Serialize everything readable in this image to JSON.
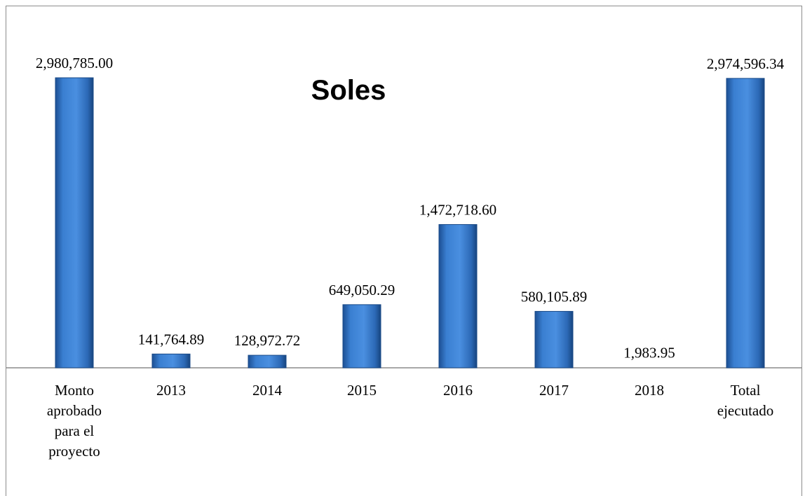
{
  "chart_data": {
    "type": "bar",
    "title": "Soles",
    "categories": [
      [
        "Monto",
        "aprobado",
        "para el",
        "proyecto"
      ],
      [
        "2013"
      ],
      [
        "2014"
      ],
      [
        "2015"
      ],
      [
        "2016"
      ],
      [
        "2017"
      ],
      [
        "2018"
      ],
      [
        "Total",
        "ejecutado"
      ]
    ],
    "values": [
      2980785.0,
      141764.89,
      128972.72,
      649050.29,
      1472718.6,
      580105.89,
      1983.95,
      2974596.34
    ],
    "value_labels": [
      "2,980,785.00",
      "141,764.89",
      "128,972.72",
      "649,050.29",
      "1,472,718.60",
      "580,105.89",
      "1,983.95",
      "2,974,596.34"
    ],
    "ylim": [
      0,
      2980785
    ],
    "grid": false,
    "legend": "none",
    "bar_color": "#2e6fc4"
  }
}
